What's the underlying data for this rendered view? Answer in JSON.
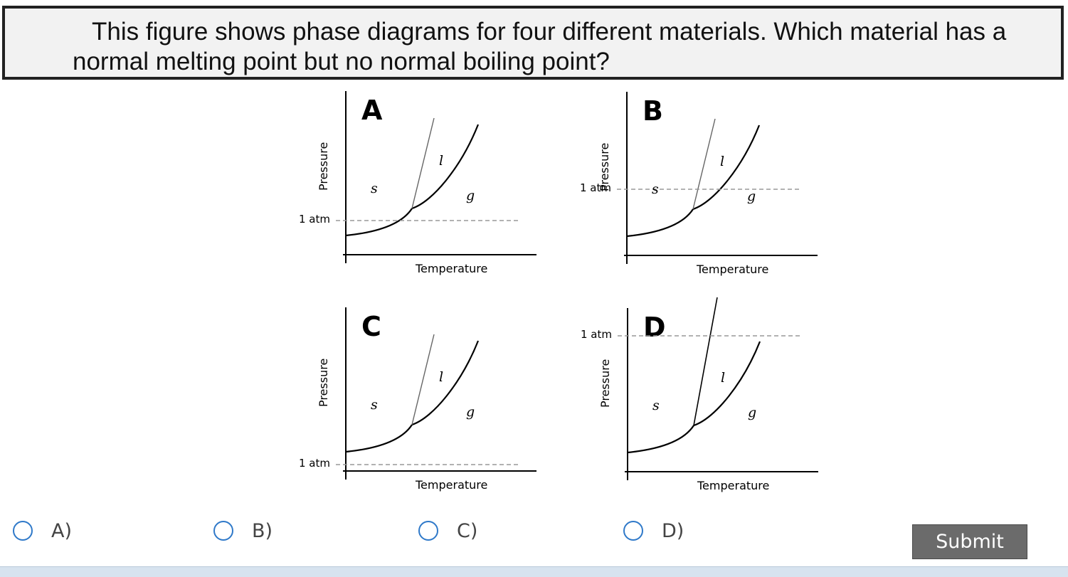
{
  "question": {
    "text": "This figure shows phase diagrams for four different materials.  Which material has a normal melting point but no normal boiling point?"
  },
  "figure": {
    "x_axis_label": "Temperature",
    "y_axis_label": "Pressure",
    "reference_label": "1 atm",
    "phase_labels": {
      "solid": "s",
      "liquid": "l",
      "gas": "g"
    },
    "panels": [
      {
        "letter": "A",
        "atm_position": "middle"
      },
      {
        "letter": "B",
        "atm_position": "above-triple-point"
      },
      {
        "letter": "C",
        "atm_position": "bottom"
      },
      {
        "letter": "D",
        "atm_position": "top"
      }
    ]
  },
  "choices": [
    {
      "label": "A)"
    },
    {
      "label": "B)"
    },
    {
      "label": "C)"
    },
    {
      "label": "D)"
    }
  ],
  "submit": {
    "label": "Submit"
  },
  "colors": {
    "radio_border": "#2f79c9",
    "submit_bg": "#6b6b6b",
    "footer_bar": "#d7e3ef"
  }
}
